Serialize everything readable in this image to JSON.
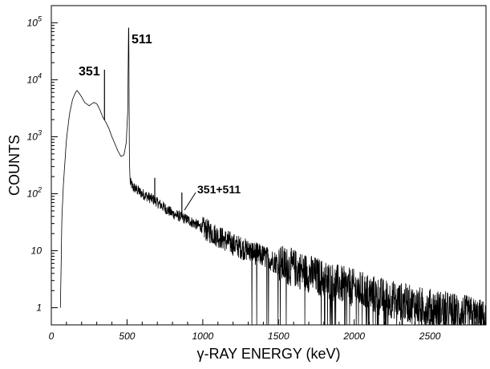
{
  "chart_data": {
    "type": "line",
    "xlabel": "γ-RAY ENERGY (keV)",
    "ylabel": "COUNTS",
    "xlim": [
      0,
      2870
    ],
    "ylim": [
      0.5,
      200000
    ],
    "yscale": "log",
    "grid": false,
    "x_ticks": [
      {
        "value": 0,
        "label": "0"
      },
      {
        "value": 500,
        "label": "500"
      },
      {
        "value": 1000,
        "label": "1000"
      },
      {
        "value": 1500,
        "label": "1500"
      },
      {
        "value": 2000,
        "label": "2000"
      },
      {
        "value": 2500,
        "label": "2500"
      }
    ],
    "y_ticks": [
      {
        "value": 1,
        "label": "1"
      },
      {
        "value": 10,
        "label": "10"
      },
      {
        "value": 100,
        "label": "10",
        "exp": "2"
      },
      {
        "value": 1000,
        "label": "10",
        "exp": "3"
      },
      {
        "value": 10000,
        "label": "10",
        "exp": "4"
      },
      {
        "value": 100000,
        "label": "10",
        "exp": "5"
      }
    ],
    "series": [
      {
        "x": [
          60,
          70,
          80,
          100,
          120,
          140,
          160,
          170,
          180,
          200,
          220,
          250,
          280,
          300,
          320,
          340,
          360,
          380,
          400,
          420,
          440,
          460,
          480,
          495,
          505,
          511,
          515,
          520,
          540,
          560,
          600,
          650,
          690,
          700,
          800,
          900,
          1000,
          1100,
          1200,
          1300,
          1400,
          1500,
          1600,
          1700,
          1800,
          1900,
          2000,
          2100,
          2200,
          2300,
          2400,
          2500,
          2600,
          2700,
          2800,
          2870
        ],
        "y": [
          1,
          40,
          150,
          900,
          2500,
          4500,
          6000,
          6500,
          6000,
          5000,
          4000,
          3500,
          4000,
          3800,
          3000,
          2200,
          1800,
          1400,
          1000,
          750,
          560,
          450,
          480,
          800,
          3000,
          160000,
          500,
          160,
          130,
          120,
          100,
          85,
          75,
          70,
          45,
          35,
          25,
          18,
          13,
          10,
          8,
          6,
          5,
          4,
          3.2,
          2.6,
          2.2,
          1.8,
          1.5,
          1.3,
          1.1,
          1.0,
          0.9,
          0.8,
          0.7,
          0.6
        ]
      }
    ],
    "peaks": [
      {
        "x": 351,
        "y": 15000
      },
      {
        "x": 683,
        "y": 190
      },
      {
        "x": 862,
        "y": 105
      }
    ],
    "annotations": [
      {
        "text": "511",
        "x": 511,
        "y": 160000
      },
      {
        "text": "351",
        "x": 351,
        "y": 15000
      },
      {
        "text": "351+511",
        "x": 862,
        "y": 105
      }
    ]
  }
}
